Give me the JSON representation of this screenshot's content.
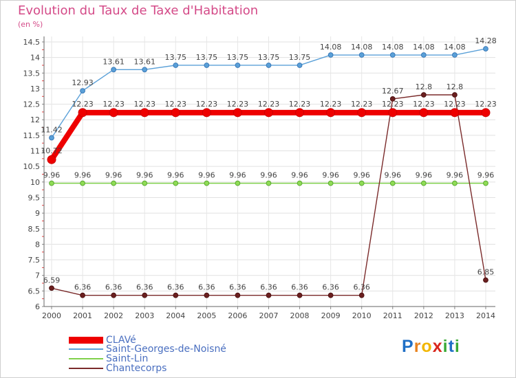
{
  "chart_data": {
    "type": "line",
    "title": "Evolution du Taux de Taxe d'Habitation",
    "ylabel": "(en %)",
    "xlabel": "",
    "ylim": [
      6,
      14.5
    ],
    "yticks": [
      "6",
      "6.5",
      "7",
      "7.5",
      "8",
      "8.5",
      "9",
      "9.5",
      "10",
      "10.5",
      "11",
      "11.5",
      "12",
      "12.5",
      "13",
      "13.5",
      "14",
      "14.5"
    ],
    "categories": [
      "2000",
      "2001",
      "2002",
      "2003",
      "2004",
      "2005",
      "2006",
      "2007",
      "2008",
      "2009",
      "2010",
      "2011",
      "2012",
      "2013",
      "2014"
    ],
    "series": [
      {
        "name": "Saint-Georges-de-Noisné",
        "color": "#5aa0d8",
        "values": [
          11.42,
          12.93,
          13.61,
          13.61,
          13.75,
          13.75,
          13.75,
          13.75,
          13.75,
          14.08,
          14.08,
          14.08,
          14.08,
          14.08,
          14.28
        ]
      },
      {
        "name": "Saint-Lin",
        "color": "#7fd04a",
        "values": [
          9.96,
          9.96,
          9.96,
          9.96,
          9.96,
          9.96,
          9.96,
          9.96,
          9.96,
          9.96,
          9.96,
          9.96,
          9.96,
          9.96,
          9.96
        ]
      },
      {
        "name": "Chantecorps",
        "color": "#7a2a2a",
        "values": [
          6.59,
          6.36,
          6.36,
          6.36,
          6.36,
          6.36,
          6.36,
          6.36,
          6.36,
          6.36,
          6.36,
          12.67,
          12.8,
          12.8,
          6.85
        ]
      },
      {
        "name": "CLAVé",
        "color": "#ee0000",
        "values": [
          10.72,
          12.23,
          12.23,
          12.23,
          12.23,
          12.23,
          12.23,
          12.23,
          12.23,
          12.23,
          12.23,
          12.23,
          12.23,
          12.23,
          12.23
        ]
      }
    ],
    "labels": {
      "Saint-Georges-de-Noisné": [
        "11.42",
        "12.93",
        "13.61",
        "13.61",
        "13.75",
        "13.75",
        "13.75",
        "13.75",
        "13.75",
        "14.08",
        "14.08",
        "14.08",
        "14.08",
        "14.08",
        "14.28"
      ],
      "Saint-Lin": [
        "9.96",
        "9.96",
        "9.96",
        "9.96",
        "9.96",
        "9.96",
        "9.96",
        "9.96",
        "9.96",
        "9.96",
        "9.96",
        "9.96",
        "9.96",
        "9.96",
        "9.96"
      ],
      "Chantecorps": [
        "6.59",
        "6.36",
        "6.36",
        "6.36",
        "6.36",
        "6.36",
        "6.36",
        "6.36",
        "6.36",
        "6.36",
        "6.36",
        "12.67",
        "12.8",
        "12.8",
        "6.85"
      ],
      "CLAVé": [
        "10.72",
        "12.23",
        "12.23",
        "12.23",
        "12.23",
        "12.23",
        "12.23",
        "12.23",
        "12.23",
        "12.23",
        "12.23",
        "12.23",
        "12.23",
        "12.23",
        "12.23"
      ]
    },
    "legend": [
      "CLAVé",
      "Saint-Georges-de-Noisné",
      "Saint-Lin",
      "Chantecorps"
    ],
    "legend_position": "bottom-left",
    "grid": true
  },
  "brand": {
    "letters": [
      {
        "ch": "P",
        "color": "#1f6fc5"
      },
      {
        "ch": "r",
        "color": "#e8821e"
      },
      {
        "ch": "o",
        "color": "#f2b600"
      },
      {
        "ch": "x",
        "color": "#d9261c"
      },
      {
        "ch": "i",
        "color": "#39a935"
      },
      {
        "ch": "t",
        "color": "#1f6fc5"
      },
      {
        "ch": "i",
        "color": "#39a935"
      }
    ]
  }
}
